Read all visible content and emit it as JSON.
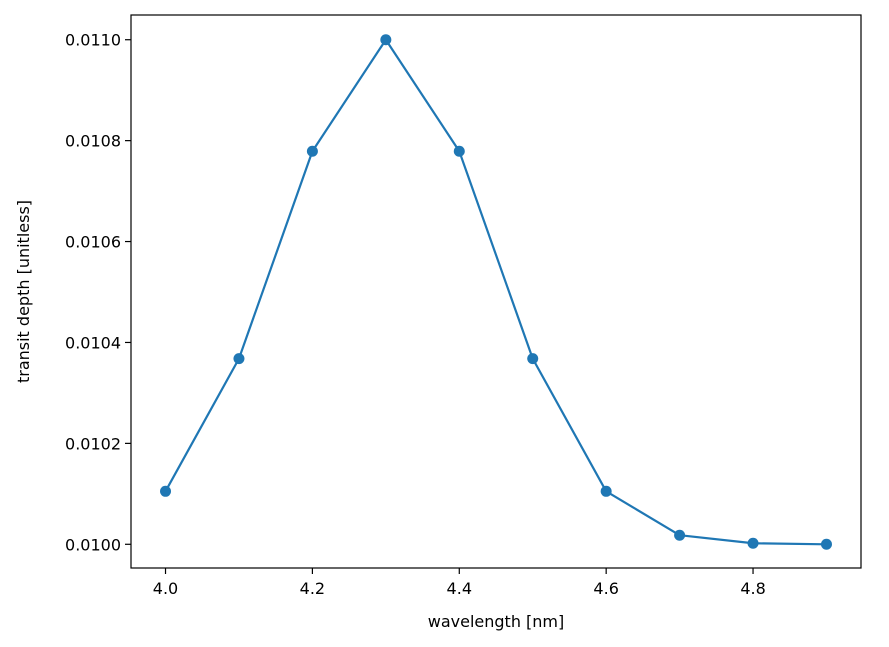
{
  "chart_data": {
    "type": "line",
    "xlabel": "wavelength [nm]",
    "ylabel": "transit depth [unitless]",
    "xlim": [
      3.953,
      4.947
    ],
    "ylim": [
      0.009953,
      0.011049
    ],
    "x_ticks": [
      4.0,
      4.2,
      4.4,
      4.6,
      4.8
    ],
    "x_tick_labels": [
      "4.0",
      "4.2",
      "4.4",
      "4.6",
      "4.8"
    ],
    "y_ticks": [
      0.01,
      0.0102,
      0.0104,
      0.0106,
      0.0108,
      0.011
    ],
    "y_tick_labels": [
      "0.0100",
      "0.0102",
      "0.0104",
      "0.0106",
      "0.0108",
      "0.0110"
    ],
    "grid": false,
    "series": [
      {
        "color": "#1f77b4",
        "marker": "circle",
        "x": [
          4.0,
          4.1,
          4.2,
          4.3,
          4.4,
          4.5,
          4.6,
          4.7,
          4.8,
          4.9
        ],
        "y": [
          0.010105,
          0.010368,
          0.010779,
          0.011,
          0.010779,
          0.010368,
          0.010105,
          0.010018,
          0.010002,
          0.01
        ]
      }
    ]
  }
}
